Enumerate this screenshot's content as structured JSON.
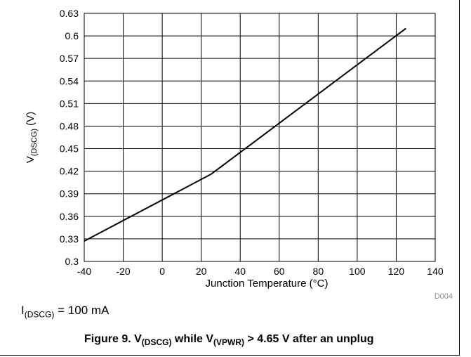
{
  "chart_data": {
    "type": "line",
    "xlabel": "Junction Temperature (°C)",
    "ylabel": {
      "main": "V",
      "sub": "(DSCG)",
      "unit": " (V)"
    },
    "xlim": [
      -40,
      140
    ],
    "ylim": [
      0.3,
      0.63
    ],
    "xticks": [
      "-40",
      "-20",
      "0",
      "20",
      "40",
      "60",
      "80",
      "100",
      "120",
      "140"
    ],
    "yticks": [
      "0.3",
      "0.33",
      "0.36",
      "0.39",
      "0.42",
      "0.45",
      "0.48",
      "0.51",
      "0.54",
      "0.57",
      "0.6",
      "0.63"
    ],
    "grid": true,
    "series": [
      {
        "x": [
          -40,
          25,
          125
        ],
        "y": [
          0.327,
          0.416,
          0.61
        ],
        "color": "#000000"
      }
    ],
    "figure_code": "D004"
  },
  "condition": {
    "main": "I",
    "sub": "(DSCG)",
    "rest": " = 100 mA"
  },
  "caption": {
    "prefix": "Figure 9. V",
    "sub1": "(DSCG)",
    "mid": " while V",
    "sub2": "(VPWR)",
    "suffix": " > 4.65 V after an unplug"
  }
}
